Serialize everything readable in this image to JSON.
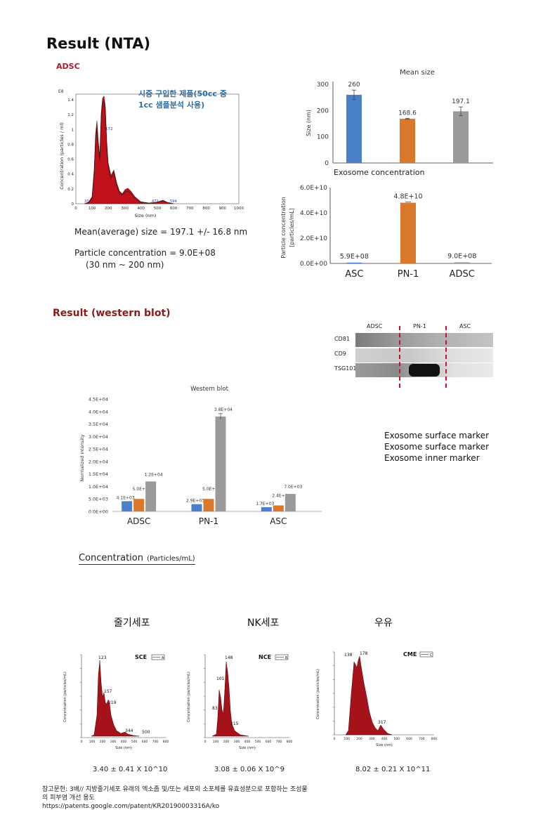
{
  "header": {
    "title": "Result (NTA)",
    "adsc_tag": "ADSC"
  },
  "nta": {
    "note_line1": "시중 구입한 제품(50cc 중",
    "note_line2": "1cc 샘플분석 사용)",
    "mean_text": "Mean(average)  size  =  197.1  +/-  16.8  nm",
    "conc_text": "Particle  concentration  =  9.0E+08",
    "range_text": "(30 nm ~ 200 nm)",
    "small_chart": {
      "ylabel": "Concentration (particles / ml)",
      "xlabel": "Size (nm)",
      "corner_label": "E8",
      "yticks": [
        "0",
        "0.2",
        "0.4",
        "0.6",
        "0.8",
        "1",
        "1.2",
        "1.4"
      ],
      "xticks": [
        "0",
        "100",
        "200",
        "300",
        "400",
        "500",
        "600",
        "700",
        "800",
        "900",
        "1000"
      ],
      "peak_labels": [
        "172",
        "472",
        "594",
        "33"
      ]
    }
  },
  "chart_data": [
    {
      "type": "bar",
      "title": "Mean size",
      "ylabel": "Size (nm)",
      "categories": [
        "",
        "",
        ""
      ],
      "values": [
        260,
        168.6,
        197.1
      ],
      "value_labels": [
        "260",
        "168.6",
        "197.1"
      ],
      "errors": [
        18,
        2,
        16.8
      ],
      "colors": [
        "#4a7fc9",
        "#d9772a",
        "#9a9a9a"
      ],
      "ylim": [
        0,
        300
      ],
      "yticks": [
        "0",
        "100",
        "200",
        "300"
      ]
    },
    {
      "type": "bar",
      "title": "Exosome  concentration",
      "ylabel": "Particle concentration [particles/mL]",
      "categories": [
        "ASC",
        "PN-1",
        "ADSC"
      ],
      "values": [
        590000000,
        48000000000,
        900000000
      ],
      "value_labels": [
        "5.9E+08",
        "4.8E+10",
        "9.0E+08"
      ],
      "colors": [
        "#4a7fc9",
        "#d9772a",
        "#9a9a9a"
      ],
      "ylim": [
        0,
        60000000000
      ],
      "yticks": [
        "0.0E+00",
        "2.0E+10",
        "4.0E+10",
        "6.0E+10"
      ]
    },
    {
      "type": "bar",
      "title": "Western blot",
      "ylabel": "Normalized intensity",
      "categories": [
        "ADSC",
        "PN-1",
        "ASC"
      ],
      "series": [
        {
          "values": [
            4100,
            2900,
            1700
          ],
          "labels": [
            "4.1E+03",
            "2.9E+03",
            "1.7E+03"
          ],
          "color": "#4a7fc9"
        },
        {
          "values": [
            5000,
            5000,
            2400
          ],
          "labels": [
            "5.0E+03",
            "5.0E+03",
            "2.4E+03"
          ],
          "color": "#d9772a"
        },
        {
          "values": [
            12000,
            38000,
            7000
          ],
          "labels": [
            "1.2E+04",
            "3.8E+04",
            "7.0E+03"
          ],
          "color": "#9a9a9a"
        }
      ],
      "ylim": [
        0,
        45000
      ],
      "yticks": [
        "0.0E+00",
        "5.0E+03",
        "1.0E+04",
        "1.5E+04",
        "2.0E+04",
        "2.5E+04",
        "3.0E+04",
        "3.5E+04",
        "4.0E+04",
        "4.5E+04"
      ]
    }
  ],
  "western": {
    "title": "Result  (western blot)",
    "blot_cols": [
      "ADSC",
      "PN-1",
      "ASC"
    ],
    "blot_rows": [
      "CD81",
      "CD9",
      "TSG101"
    ],
    "markers": [
      "Exosome  surface  marker",
      "Exosome  surface  marker",
      "Exosome  inner  marker"
    ]
  },
  "concentration": {
    "title": "Concentration",
    "unit": "(Particles/mL)",
    "columns": [
      {
        "header": "줄기세포",
        "code": "SCE",
        "box": "A",
        "value": "3.40 ± 0.41 X 10^10",
        "peaks": [
          "123",
          "157",
          "219",
          "344",
          "500"
        ]
      },
      {
        "header": "NK세포",
        "code": "NCE",
        "box": "B",
        "value": "3.08 ± 0.06 X 10^9",
        "peaks": [
          "148",
          "101",
          "83",
          "215"
        ]
      },
      {
        "header": "우유",
        "code": "CME",
        "box": "C",
        "value": "8.02 ± 0.21 X 10^11",
        "peaks": [
          "138",
          "178",
          "317"
        ]
      }
    ],
    "mini_ylabel": "Concentration (particles/mL)",
    "mini_xlabel": "Size (nm)",
    "mini_xticks": [
      "0",
      "100",
      "200",
      "300",
      "400",
      "500",
      "600",
      "700",
      "800"
    ]
  },
  "citation": {
    "line1": "참고문헌: 3배// 지방줄기세포 유래의 엑소좀 및/또는 세포외 소포체를 유효성분으로 포함하는 조성물",
    "line2": "의 피부염 개선 용도",
    "line3": "https://patents.google.com/patent/KR20190003316A/ko"
  }
}
